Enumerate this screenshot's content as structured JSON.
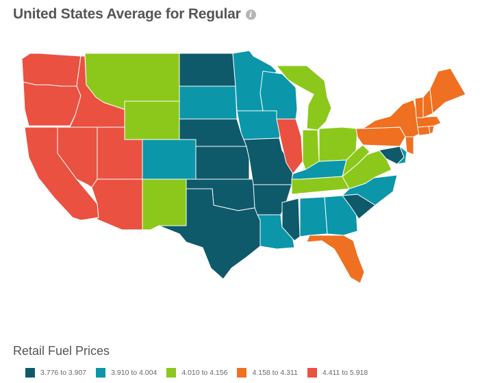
{
  "title": "United States Average for Regular",
  "info_icon": "info-icon",
  "legend_title": "Retail Fuel Prices",
  "legend": [
    {
      "label": "3.776 to 3.907",
      "color": "#0e5a6b"
    },
    {
      "label": "3.910 to 4.004",
      "color": "#0b96aa"
    },
    {
      "label": "4.010 to 4.156",
      "color": "#8cc81b"
    },
    {
      "label": "4.158 to 4.311",
      "color": "#ef7021"
    },
    {
      "label": "4.411 to 5.918",
      "color": "#ea5141"
    }
  ],
  "states": {
    "WA": 4,
    "OR": 4,
    "CA": 4,
    "NV": 4,
    "ID": 4,
    "UT": 4,
    "AZ": 4,
    "IL": 4,
    "MT": 2,
    "WY": 2,
    "NM": 2,
    "MI": 2,
    "IN": 2,
    "OH": 2,
    "KY": 1,
    "TN": 2,
    "WV": 2,
    "VA": 2,
    "ND": 0,
    "NE": 0,
    "KS": 0,
    "OK": 0,
    "TX": 0,
    "MO": 0,
    "AR": 0,
    "MS": 0,
    "SC": 0,
    "MD": 0,
    "SD": 1,
    "CO": 1,
    "MN": 1,
    "IA": 1,
    "WI": 1,
    "LA": 1,
    "AL": 1,
    "GA": 1,
    "NC": 1,
    "DE": 1,
    "NY": 3,
    "PA": 3,
    "NJ": 3,
    "FL": 3,
    "ME": 3,
    "NH": 3,
    "VT": 3,
    "MA": 3,
    "CT": 3,
    "RI": 3
  }
}
